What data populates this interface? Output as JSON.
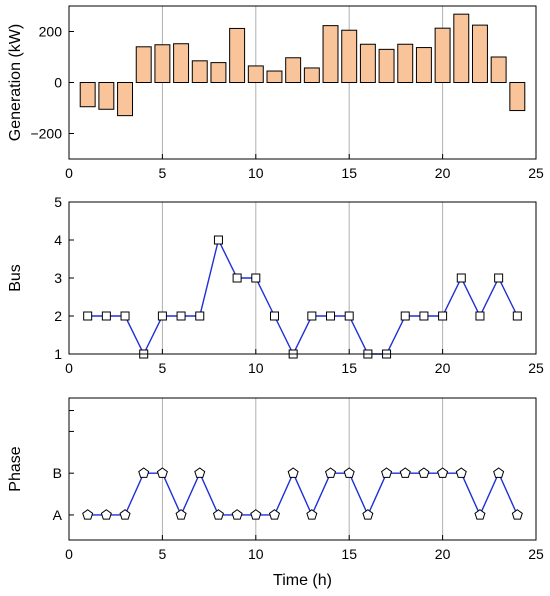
{
  "chart_data": [
    {
      "type": "bar",
      "x": [
        1,
        2,
        3,
        4,
        5,
        6,
        7,
        8,
        9,
        10,
        11,
        12,
        13,
        14,
        15,
        16,
        17,
        18,
        19,
        20,
        21,
        22,
        23,
        24
      ],
      "values": [
        -95,
        -105,
        -130,
        140,
        148,
        152,
        85,
        78,
        212,
        65,
        45,
        97,
        57,
        223,
        205,
        150,
        130,
        150,
        137,
        213,
        268,
        225,
        100,
        -110
      ],
      "ylabel": "Generation (kW)",
      "xlabel": "",
      "xlim": [
        0,
        25
      ],
      "ylim": [
        -300,
        300
      ],
      "xticks": [
        0,
        5,
        10,
        15,
        20,
        25
      ],
      "yticks": [
        -200,
        0,
        200
      ],
      "xgrid": [
        5,
        10,
        15,
        20
      ],
      "bar_color": "#f9c49a"
    },
    {
      "type": "line",
      "x": [
        1,
        2,
        3,
        4,
        5,
        6,
        7,
        8,
        9,
        10,
        11,
        12,
        13,
        14,
        15,
        16,
        17,
        18,
        19,
        20,
        21,
        22,
        23,
        24
      ],
      "values": [
        2,
        2,
        2,
        1,
        2,
        2,
        2,
        4,
        3,
        3,
        2,
        1,
        2,
        2,
        2,
        1,
        1,
        2,
        2,
        2,
        3,
        2,
        3,
        2
      ],
      "marker": "square",
      "ylabel": "Bus",
      "xlabel": "",
      "xlim": [
        0,
        25
      ],
      "ylim": [
        1,
        5
      ],
      "xticks": [
        0,
        5,
        10,
        15,
        20,
        25
      ],
      "yticks": [
        1,
        2,
        3,
        4,
        5
      ],
      "xgrid": [
        5,
        10,
        15,
        20
      ],
      "line_color": "#1f2fd8"
    },
    {
      "type": "line",
      "x": [
        1,
        2,
        3,
        4,
        5,
        6,
        7,
        8,
        9,
        10,
        11,
        12,
        13,
        14,
        15,
        16,
        17,
        18,
        19,
        20,
        21,
        22,
        23,
        24
      ],
      "values": [
        1,
        1,
        1,
        2,
        2,
        1,
        2,
        1,
        1,
        1,
        1,
        2,
        1,
        2,
        2,
        1,
        2,
        2,
        2,
        2,
        2,
        1,
        2,
        1
      ],
      "marker": "pentagon",
      "ylabel": "Phase",
      "xlabel": "Time (h)",
      "xlim": [
        0,
        25
      ],
      "ylim": [
        0.4,
        3.8
      ],
      "xticks": [
        0,
        5,
        10,
        15,
        20,
        25
      ],
      "yticks": [
        1,
        2
      ],
      "yticklabels": [
        "A",
        "B"
      ],
      "minor_yticks": [
        3,
        3.5
      ],
      "xgrid": [
        5,
        10,
        15,
        20
      ],
      "line_color": "#1f2fd8"
    }
  ]
}
